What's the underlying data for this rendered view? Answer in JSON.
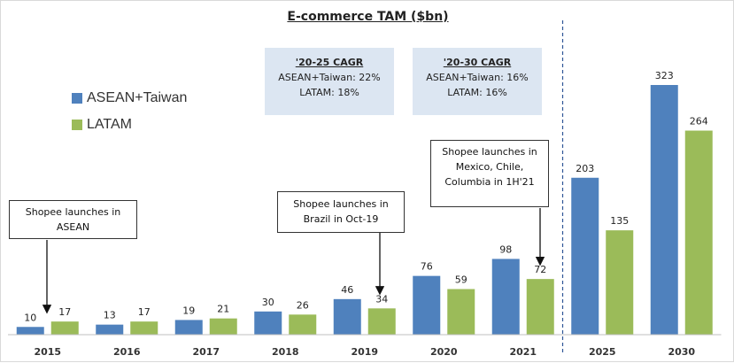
{
  "chart_data": {
    "type": "bar",
    "title": "E-commerce TAM ($bn)",
    "categories": [
      "2015",
      "2016",
      "2017",
      "2018",
      "2019",
      "2020",
      "2021",
      "2025",
      "2030"
    ],
    "series": [
      {
        "name": "ASEAN+Taiwan",
        "values": [
          10,
          13,
          19,
          30,
          46,
          76,
          98,
          203,
          323
        ],
        "color": "#4f81bd"
      },
      {
        "name": "LATAM",
        "values": [
          17,
          17,
          21,
          26,
          34,
          59,
          72,
          135,
          264
        ],
        "color": "#9bbb59"
      }
    ],
    "ylim": [
      0,
      330
    ],
    "legend_position": "left",
    "divider_after_category": "2021",
    "cagr_boxes": [
      {
        "heading": "'20-25 CAGR",
        "lines": [
          "ASEAN+Taiwan: 22%",
          "LATAM: 18%"
        ]
      },
      {
        "heading": "'20-30 CAGR",
        "lines": [
          "ASEAN+Taiwan: 16%",
          "LATAM: 16%"
        ]
      }
    ],
    "annotations": [
      {
        "lines": [
          "Shopee launches in",
          "ASEAN"
        ],
        "points_to": "2015"
      },
      {
        "lines": [
          "Shopee launches in",
          "Brazil in Oct-19"
        ],
        "points_to": "2019"
      },
      {
        "lines": [
          "Shopee launches in",
          "Mexico, Chile,",
          "Columbia in 1H'21"
        ],
        "points_to": "2021"
      }
    ]
  }
}
